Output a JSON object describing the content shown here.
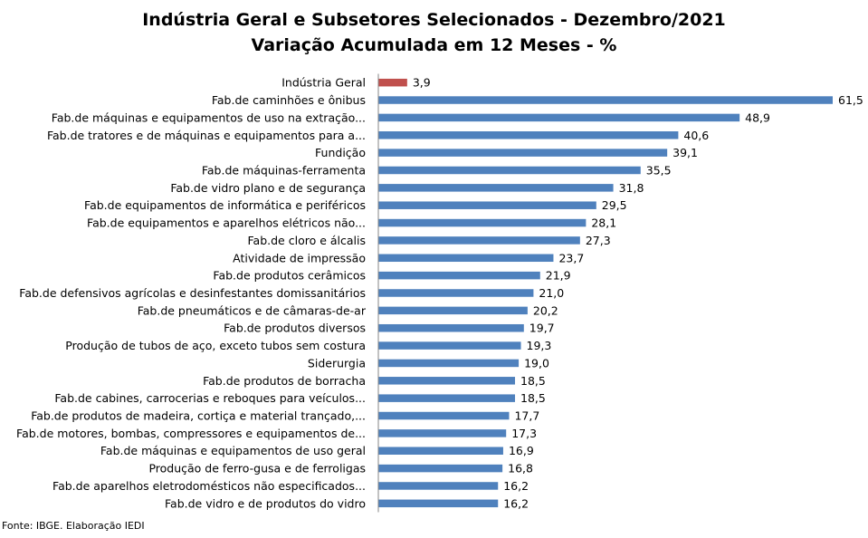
{
  "chart_data": {
    "type": "bar",
    "orientation": "horizontal",
    "title": "Indústria Geral e Subsetores Selecionados - Dezembro/2021",
    "subtitle": "Variação Acumulada em 12 Meses - %",
    "categories": [
      "Indústria Geral",
      "Fab.de caminhões e ônibus",
      "Fab.de máquinas e equipamentos de uso na extração...",
      "Fab.de tratores e de máquinas e equipamentos para a...",
      "Fundição",
      "Fab.de máquinas-ferramenta",
      "Fab.de vidro plano e de segurança",
      "Fab.de equipamentos de informática e periféricos",
      "Fab.de equipamentos e aparelhos elétricos não...",
      "Fab.de cloro e álcalis",
      "Atividade de impressão",
      "Fab.de produtos cerâmicos",
      "Fab.de defensivos agrícolas e desinfestantes domissanitários",
      "Fab.de pneumáticos e de câmaras-de-ar",
      "Fab.de produtos diversos",
      "Produção de tubos de aço, exceto tubos sem costura",
      "Siderurgia",
      "Fab.de produtos de borracha",
      "Fab.de cabines, carrocerias e reboques para veículos...",
      "Fab.de produtos de madeira, cortiça e material trançado,...",
      "Fab.de motores, bombas, compressores e equipamentos de...",
      "Fab.de máquinas e equipamentos de uso geral",
      "Produção de ferro-gusa e de ferroligas",
      "Fab.de aparelhos eletrodomésticos não especificados...",
      "Fab.de vidro e de produtos do vidro"
    ],
    "values": [
      3.9,
      61.5,
      48.9,
      40.6,
      39.1,
      35.5,
      31.8,
      29.5,
      28.1,
      27.3,
      23.7,
      21.9,
      21.0,
      20.2,
      19.7,
      19.3,
      19.0,
      18.5,
      18.5,
      17.7,
      17.3,
      16.9,
      16.8,
      16.2,
      16.2
    ],
    "value_labels": [
      "3,9",
      "61,5",
      "48,9",
      "40,6",
      "39,1",
      "35,5",
      "31,8",
      "29,5",
      "28,1",
      "27,3",
      "23,7",
      "21,9",
      "21,0",
      "20,2",
      "19,7",
      "19,3",
      "19,0",
      "18,5",
      "18,5",
      "17,7",
      "17,3",
      "16,9",
      "16,8",
      "16,2",
      "16,2"
    ],
    "highlight_index": 0,
    "colors": {
      "highlight": "#c0504d",
      "bar": "#4f81bd",
      "axis": "#868686"
    },
    "xlim": [
      0,
      61.5
    ],
    "grid": false,
    "legend": "none"
  },
  "footer": "Fonte: IBGE. Elaboração IEDI"
}
